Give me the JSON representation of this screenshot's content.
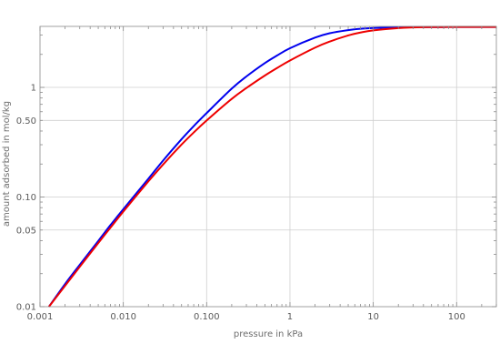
{
  "chart_data": {
    "type": "line",
    "title": "",
    "xlabel": "pressure in kPa",
    "ylabel": "amount adsorbed in mol/kg",
    "xscale": "log",
    "yscale": "log",
    "xlim": [
      0.001,
      300
    ],
    "ylim": [
      0.01,
      3.6
    ],
    "grid": true,
    "legend": "none",
    "xticks": [
      {
        "value": 0.001,
        "label": "0.001"
      },
      {
        "value": 0.01,
        "label": "0.010"
      },
      {
        "value": 0.1,
        "label": "0.100"
      },
      {
        "value": 1,
        "label": "1"
      },
      {
        "value": 10,
        "label": "10"
      },
      {
        "value": 100,
        "label": "100"
      }
    ],
    "yticks": [
      {
        "value": 0.01,
        "label": "0.01"
      },
      {
        "value": 0.05,
        "label": "0.05"
      },
      {
        "value": 0.1,
        "label": "0.10"
      },
      {
        "value": 0.5,
        "label": "0.50"
      },
      {
        "value": 1,
        "label": "1"
      }
    ],
    "series": [
      {
        "color": "#0000ee",
        "x": [
          0.00128,
          0.002,
          0.003,
          0.005,
          0.007,
          0.01,
          0.02,
          0.03,
          0.05,
          0.07,
          0.1,
          0.2,
          0.3,
          0.5,
          0.7,
          1,
          2,
          3,
          5,
          7,
          10,
          20,
          30,
          50,
          70,
          100,
          200,
          300
        ],
        "y": [
          0.01,
          0.0161,
          0.0241,
          0.0397,
          0.0554,
          0.0774,
          0.147,
          0.215,
          0.337,
          0.444,
          0.583,
          0.974,
          1.259,
          1.667,
          1.953,
          2.276,
          2.843,
          3.118,
          3.329,
          3.422,
          3.484,
          3.535,
          3.549,
          3.552,
          3.553,
          3.554,
          3.555,
          3.555
        ]
      },
      {
        "color": "#ee0000",
        "x": [
          0.00128,
          0.002,
          0.003,
          0.005,
          0.007,
          0.01,
          0.02,
          0.03,
          0.05,
          0.07,
          0.1,
          0.2,
          0.3,
          0.5,
          0.7,
          1,
          2,
          3,
          5,
          7,
          10,
          20,
          30,
          50,
          70,
          100,
          200,
          300
        ],
        "y": [
          0.01,
          0.0155,
          0.0231,
          0.038,
          0.0525,
          0.0737,
          0.139,
          0.198,
          0.301,
          0.388,
          0.499,
          0.785,
          0.987,
          1.283,
          1.502,
          1.759,
          2.303,
          2.618,
          2.976,
          3.164,
          3.313,
          3.477,
          3.523,
          3.548,
          3.553,
          3.555,
          3.555,
          3.555
        ]
      }
    ]
  }
}
